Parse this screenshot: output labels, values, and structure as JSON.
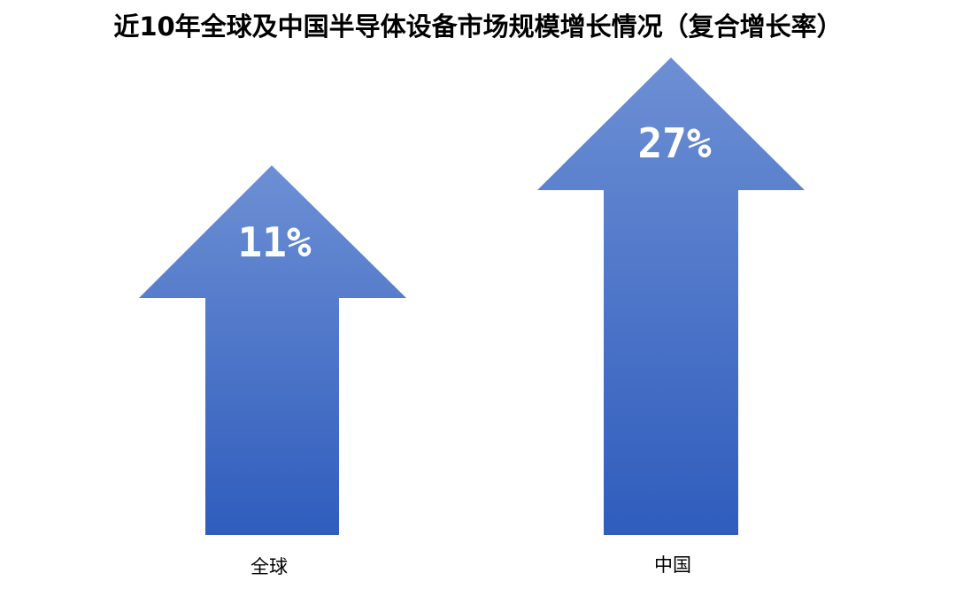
{
  "title": "近10年全球及中国半导体设备市场规模增长情况（复合增长率）",
  "arrows": [
    {
      "label": "全球",
      "rate": "11%"
    },
    {
      "label": "中国",
      "rate": "27%"
    }
  ]
}
